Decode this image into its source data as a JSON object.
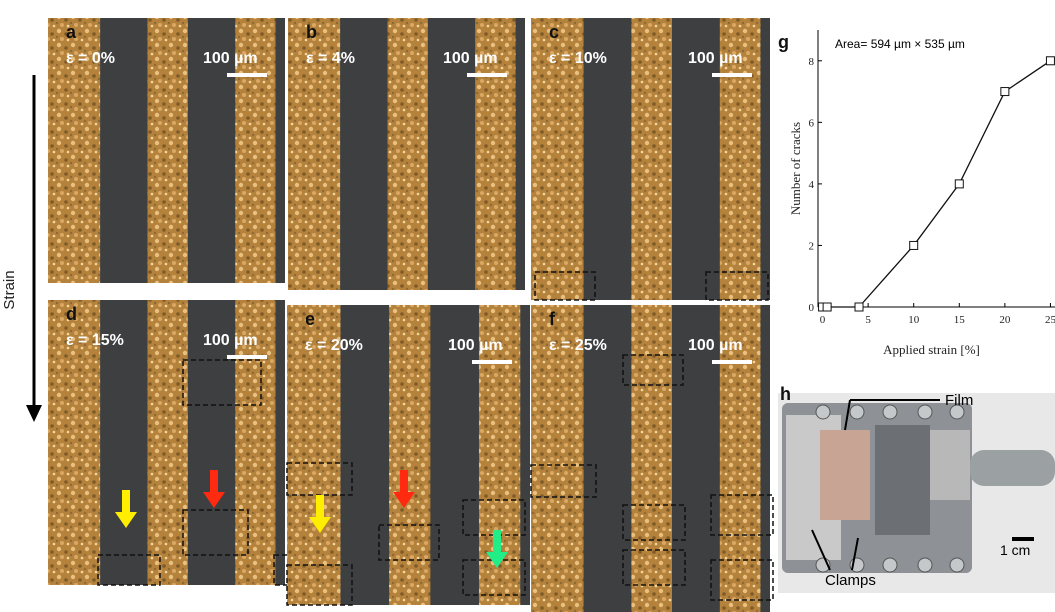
{
  "strain_label": "Strain",
  "panels": [
    {
      "label": "a",
      "strain": "ε = 0%",
      "scale": "100 µm"
    },
    {
      "label": "b",
      "strain": "ε = 4%",
      "scale": "100 µm"
    },
    {
      "label": "c",
      "strain": "ε = 10%",
      "scale": "100 µm"
    },
    {
      "label": "d",
      "strain": "ε = 15%",
      "scale": "100 µm"
    },
    {
      "label": "e",
      "strain": "ε = 20%",
      "scale": "100 µm"
    },
    {
      "label": "f",
      "strain": "ε = 25%",
      "scale": "100 µm"
    }
  ],
  "chart_data": {
    "type": "line",
    "label": "g",
    "title": "Area= 594 µm × 535 µm",
    "x_label": "Applied strain [%]",
    "y_label": "Number of cracks",
    "x": [
      0,
      0.5,
      4,
      10,
      15,
      20,
      25
    ],
    "values": [
      0,
      0,
      0,
      2,
      4,
      7,
      8
    ],
    "color": "#111111",
    "xlim": [
      -0.5,
      25.5
    ],
    "ylim": [
      0,
      9
    ],
    "xticks": [
      0,
      5,
      10,
      15,
      20,
      25
    ],
    "yticks": [
      0,
      2,
      4,
      6,
      8
    ]
  },
  "photo": {
    "label": "h",
    "film": "Film",
    "clamps": "Clamps",
    "scale": "1 cm"
  }
}
